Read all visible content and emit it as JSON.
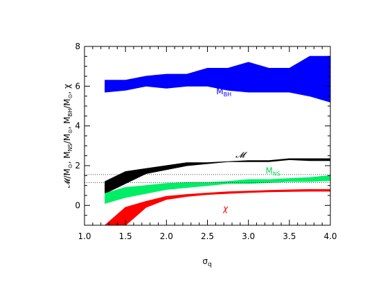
{
  "chart_data": {
    "type": "area",
    "xlabel": "σ_q",
    "ylabel": "𝓜/M_⊙, M_NS/M_⊙, M_BH/M_⊙, χ",
    "xlim": [
      1.0,
      4.0
    ],
    "ylim": [
      -1.0,
      8.0
    ],
    "x_ticks": [
      1.0,
      1.5,
      2.0,
      2.5,
      3.0,
      3.5,
      4.0
    ],
    "y_ticks": [
      0,
      2,
      4,
      6,
      8
    ],
    "x_tick_labels": [
      "1.0",
      "1.5",
      "2.0",
      "2.5",
      "3.0",
      "3.5",
      "4.0"
    ],
    "y_tick_labels": [
      "0",
      "2",
      "4",
      "6",
      "8"
    ],
    "grid": false,
    "x": [
      1.25,
      1.5,
      1.75,
      2.0,
      2.25,
      2.5,
      2.75,
      3.0,
      3.25,
      3.5,
      3.75,
      4.0
    ],
    "series": [
      {
        "name": "M_BH",
        "label_base": "M",
        "label_sub": "BH",
        "color": "#0000ff",
        "label_pos": [
          2.7,
          5.6
        ],
        "lower": [
          5.7,
          5.8,
          6.0,
          5.9,
          6.0,
          6.0,
          5.8,
          5.7,
          5.7,
          5.7,
          5.5,
          5.2
        ],
        "upper": [
          6.3,
          6.3,
          6.5,
          6.6,
          6.6,
          6.9,
          6.9,
          7.2,
          6.9,
          6.9,
          7.5,
          7.5
        ]
      },
      {
        "name": "𝓜",
        "label_base": "𝓜",
        "label_sub": "",
        "color": "#000000",
        "label_pos": [
          2.9,
          2.4
        ],
        "lower": [
          0.6,
          1.1,
          1.6,
          1.8,
          2.0,
          2.1,
          2.2,
          2.2,
          2.2,
          2.3,
          2.25,
          2.25
        ],
        "upper": [
          1.2,
          1.7,
          1.85,
          2.0,
          2.15,
          2.15,
          2.2,
          2.25,
          2.25,
          2.35,
          2.35,
          2.35
        ]
      },
      {
        "name": "M_NS",
        "label_base": "M",
        "label_sub": "NS",
        "color": "#00ee66",
        "label_pos": [
          3.3,
          1.6
        ],
        "lower": [
          0.1,
          0.4,
          0.6,
          0.8,
          0.9,
          1.0,
          1.1,
          1.1,
          1.15,
          1.2,
          1.2,
          1.25
        ],
        "upper": [
          0.6,
          0.9,
          1.0,
          1.1,
          1.15,
          1.15,
          1.2,
          1.3,
          1.3,
          1.35,
          1.4,
          1.5
        ]
      },
      {
        "name": "χ",
        "label_base": "χ",
        "label_sub": "",
        "color": "#ff0000",
        "label_pos": [
          2.72,
          -0.3
        ],
        "lower": [
          -1.0,
          -1.0,
          -0.1,
          0.3,
          0.45,
          0.55,
          0.6,
          0.65,
          0.68,
          0.7,
          0.72,
          0.72
        ],
        "upper": [
          -1.0,
          -0.1,
          0.2,
          0.45,
          0.55,
          0.62,
          0.68,
          0.72,
          0.75,
          0.78,
          0.8,
          0.8
        ]
      }
    ],
    "reference_lines": [
      {
        "y": 1.55,
        "style": "dotted",
        "color": "#000000"
      },
      {
        "y": 1.15,
        "style": "dotted",
        "color": "#000000"
      },
      {
        "y": 0.7,
        "style": "dotted",
        "color": "#ff0000",
        "x_start": 3.0
      }
    ]
  }
}
